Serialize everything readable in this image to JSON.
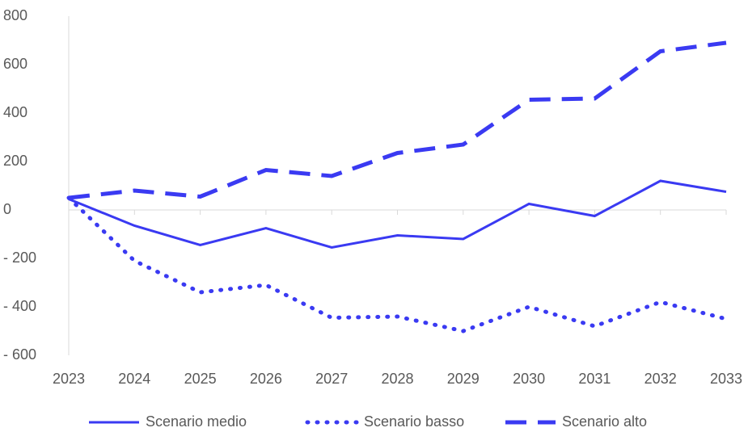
{
  "chart_data": {
    "type": "line",
    "categories": [
      "2023",
      "2024",
      "2025",
      "2026",
      "2027",
      "2028",
      "2029",
      "2030",
      "2031",
      "2032",
      "2033"
    ],
    "series": [
      {
        "name": "Scenario medio",
        "color": "#3a3af2",
        "dash": "solid",
        "values": [
          45,
          -65,
          -145,
          -75,
          -155,
          -105,
          -120,
          25,
          -25,
          120,
          75
        ]
      },
      {
        "name": "Scenario basso",
        "color": "#3a3af2",
        "dash": "dotted",
        "values": [
          50,
          -210,
          -340,
          -310,
          -445,
          -440,
          -500,
          -400,
          -480,
          -380,
          -450
        ]
      },
      {
        "name": "Scenario alto",
        "color": "#3a3af2",
        "dash": "dashed",
        "values": [
          50,
          80,
          55,
          165,
          140,
          235,
          270,
          455,
          460,
          655,
          690
        ]
      }
    ],
    "ylim": [
      -600,
      800
    ],
    "yticks": [
      {
        "value": -600,
        "label": "- 600"
      },
      {
        "value": -400,
        "label": "- 400"
      },
      {
        "value": -200,
        "label": "- 200"
      },
      0,
      200,
      400,
      600,
      800
    ],
    "grid": false,
    "legend": "bottom"
  }
}
